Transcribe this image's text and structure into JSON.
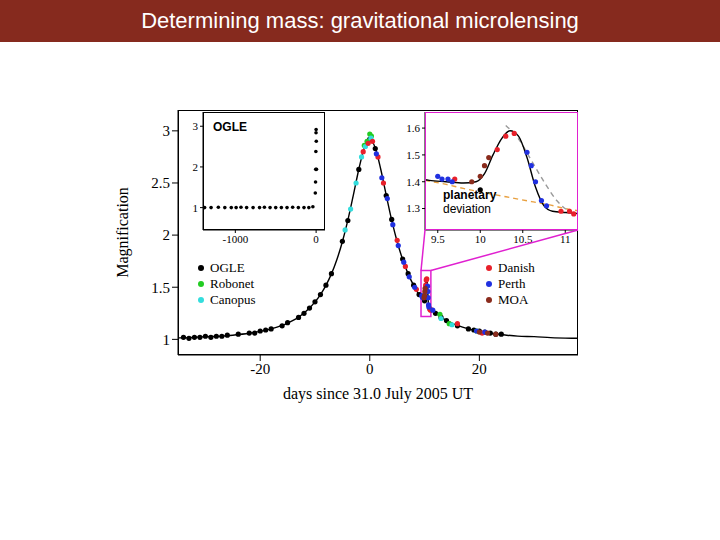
{
  "slide_title": "Determining mass: gravitational microlensing",
  "chart_data": [
    {
      "type": "scatter",
      "x_label": "days since 31.0 July 2005 UT",
      "y_label": "Magnification",
      "xlim": [
        -35,
        38
      ],
      "ylim": [
        0.85,
        3.2
      ],
      "xticks": [
        -20,
        0,
        20
      ],
      "yticks": [
        1,
        1.5,
        2,
        2.5,
        3
      ],
      "series": [
        {
          "type": "line",
          "color": "#000000",
          "line_style": "solid",
          "x": [
            -35,
            -33,
            -30,
            -27,
            -25,
            -22,
            -20,
            -18,
            -16,
            -15,
            -14,
            -13,
            -12,
            -11,
            -10,
            -9,
            -8,
            -7,
            -6,
            -5,
            -4,
            -3,
            -2,
            -1,
            0,
            1,
            2,
            3,
            4,
            5,
            6,
            7,
            8,
            9,
            9.4,
            9.6,
            9.8,
            9.95,
            10.05,
            10.15,
            10.25,
            10.35,
            10.45,
            10.55,
            10.65,
            10.75,
            10.85,
            11,
            11.2,
            12,
            13,
            14,
            15,
            16,
            18,
            20,
            22,
            25,
            27,
            30,
            33,
            37,
            38
          ],
          "values": [
            1.014,
            1.017,
            1.026,
            1.031,
            1.04,
            1.058,
            1.076,
            1.1,
            1.134,
            1.156,
            1.182,
            1.214,
            1.253,
            1.3,
            1.359,
            1.43,
            1.518,
            1.628,
            1.766,
            1.936,
            2.143,
            2.383,
            2.632,
            2.836,
            2.918,
            2.836,
            2.632,
            2.383,
            2.143,
            1.936,
            1.766,
            1.628,
            1.518,
            1.43,
            1.405,
            1.4,
            1.395,
            1.4,
            1.43,
            1.5,
            1.56,
            1.59,
            1.57,
            1.49,
            1.38,
            1.31,
            1.29,
            1.285,
            1.28,
            1.253,
            1.214,
            1.182,
            1.156,
            1.134,
            1.1,
            1.076,
            1.058,
            1.04,
            1.031,
            1.026,
            1.017,
            1.011,
            1.01
          ]
        },
        {
          "name": "OGLE",
          "color": "#000000",
          "marker": "circle",
          "x": [
            -34,
            -33,
            -32,
            -31,
            -30,
            -29,
            -28,
            -27,
            -26,
            -24,
            -22,
            -21,
            -20,
            -19,
            -18,
            -16,
            -15,
            -13,
            -12,
            -11,
            -10,
            -9,
            -8,
            -7,
            -5,
            -4,
            -2,
            0,
            1,
            3,
            4,
            6,
            7,
            8,
            9,
            10,
            12,
            13,
            14,
            16,
            18,
            19,
            20,
            21,
            22,
            23,
            24
          ],
          "values": [
            1.02,
            1.01,
            1.02,
            1.02,
            1.03,
            1.02,
            1.03,
            1.03,
            1.04,
            1.05,
            1.06,
            1.06,
            1.08,
            1.09,
            1.1,
            1.13,
            1.16,
            1.21,
            1.25,
            1.3,
            1.36,
            1.43,
            1.52,
            1.63,
            1.94,
            2.14,
            2.63,
            2.92,
            2.83,
            2.38,
            2.15,
            1.77,
            1.63,
            1.52,
            1.43,
            1.37,
            1.25,
            1.21,
            1.18,
            1.13,
            1.1,
            1.09,
            1.08,
            1.07,
            1.06,
            1.05,
            1.05
          ]
        },
        {
          "name": "Robonet",
          "color": "#22cc22",
          "marker": "circle",
          "x": [
            -1,
            -0.5,
            0,
            0.3,
            12.8,
            14.5,
            19.5
          ],
          "values": [
            2.86,
            2.9,
            2.97,
            2.95,
            1.24,
            1.15,
            1.08
          ]
        },
        {
          "name": "Canopus",
          "color": "#33dddd",
          "marker": "circle",
          "x": [
            -4.5,
            -3.5,
            -2.5,
            -1.5,
            -0.8,
            0.2,
            13,
            15
          ],
          "values": [
            2.05,
            2.25,
            2.5,
            2.75,
            2.85,
            2.93,
            1.2,
            1.14
          ]
        },
        {
          "name": "Danish",
          "color": "#e8202a",
          "marker": "circle",
          "x": [
            -1.2,
            -0.3,
            0.5,
            1.5,
            2.5,
            5,
            6.5,
            8.5,
            9.7,
            10.2,
            10.3,
            10.4,
            10.95,
            11.05,
            11.1,
            16,
            20.5
          ],
          "values": [
            2.8,
            2.88,
            2.9,
            2.75,
            2.5,
            1.95,
            1.7,
            1.48,
            1.41,
            1.52,
            1.57,
            1.58,
            1.29,
            1.29,
            1.28,
            1.15,
            1.06
          ]
        },
        {
          "name": "Perth",
          "color": "#2030e0",
          "marker": "circle",
          "x": [
            1.2,
            2.2,
            3.2,
            4.2,
            5.2,
            6.2,
            7.2,
            8.2,
            9.5,
            9.55,
            9.62,
            9.67,
            10.55,
            10.6,
            10.65,
            10.72,
            10.78,
            11.5,
            19.5,
            21
          ],
          "values": [
            2.78,
            2.55,
            2.35,
            2.1,
            1.9,
            1.74,
            1.6,
            1.5,
            1.42,
            1.41,
            1.41,
            1.4,
            1.51,
            1.46,
            1.4,
            1.33,
            1.31,
            1.28,
            1.08,
            1.07
          ]
        },
        {
          "name": "MOA",
          "color": "#8a2b1c",
          "marker": "circle",
          "x": [
            9.9,
            10.0,
            10.05,
            10.1,
            20,
            21.5,
            23
          ],
          "values": [
            1.4,
            1.42,
            1.46,
            1.49,
            1.07,
            1.06,
            1.05
          ]
        }
      ]
    },
    {
      "type": "scatter",
      "title": "OGLE",
      "xlim": [
        -1400,
        110
      ],
      "ylim": [
        0.45,
        3.35
      ],
      "xticks": [
        -1000,
        0
      ],
      "yticks": [
        1,
        2,
        3
      ],
      "series": [
        {
          "color": "#000000",
          "marker": "circle",
          "x": [
            -1380,
            -1300,
            -1210,
            -1130,
            -1050,
            -990,
            -930,
            -860,
            -780,
            -700,
            -640,
            -570,
            -500,
            -430,
            -360,
            -290,
            -220,
            -150,
            -90,
            -40,
            -10,
            -7,
            -5,
            -3,
            -1,
            0,
            2,
            5
          ],
          "values": [
            1.0,
            1.0,
            1.01,
            1.0,
            1.0,
            1.0,
            1.01,
            1.0,
            1.0,
            1.0,
            1.01,
            1.0,
            1.0,
            1.0,
            1.0,
            1.01,
            1.0,
            1.0,
            1.0,
            1.02,
            1.36,
            1.63,
            1.94,
            2.38,
            2.84,
            2.92,
            2.63,
            1.94
          ]
        }
      ]
    },
    {
      "type": "line",
      "annotation": "planetary deviation",
      "xlim": [
        9.35,
        11.15
      ],
      "ylim": [
        1.22,
        1.66
      ],
      "xticks": [
        9.5,
        10,
        10.5,
        11
      ],
      "yticks": [
        1.3,
        1.4,
        1.5,
        1.6
      ],
      "series": [
        {
          "color": "#e8a040",
          "line_style": "dashed",
          "x": [
            9.35,
            9.6,
            9.8,
            10,
            10.2,
            10.4,
            10.6,
            10.8,
            11,
            11.15
          ],
          "values": [
            1.405,
            1.39,
            1.375,
            1.362,
            1.35,
            1.338,
            1.326,
            1.315,
            1.3,
            1.292
          ]
        },
        {
          "color": "#999999",
          "line_style": "dashed",
          "x": [
            10.3,
            10.45,
            10.6,
            10.75,
            10.9,
            11.05,
            11.15
          ],
          "values": [
            1.61,
            1.56,
            1.48,
            1.4,
            1.33,
            1.29,
            1.28
          ]
        }
      ]
    }
  ]
}
